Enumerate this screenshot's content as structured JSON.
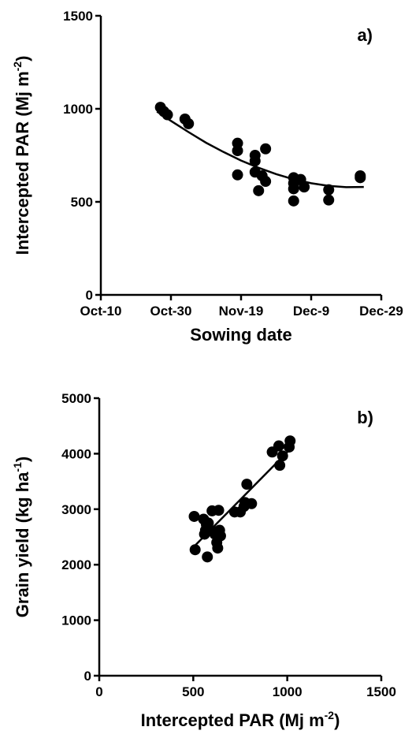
{
  "chart_data": [
    {
      "panel_label": "a)",
      "type": "scatter",
      "xlabel": "Sowing date",
      "ylabel_main": "Intercepted PAR (Mj m",
      "ylabel_sup": "-2",
      "ylabel_close": ")",
      "x_tick_labels": [
        "Oct-10",
        "Oct-30",
        "Nov-19",
        "Dec-9",
        "Dec-29"
      ],
      "y_tick_labels": [
        "0",
        "500",
        "1000",
        "1500"
      ],
      "x_ticks_day": [
        0,
        20,
        40,
        60,
        80
      ],
      "xlim_day": [
        0,
        80
      ],
      "ylim": [
        0,
        1500
      ],
      "x_day_origin": "Oct-10",
      "points": [
        {
          "x": 17,
          "y": 1008
        },
        {
          "x": 18,
          "y": 985
        },
        {
          "x": 19,
          "y": 968
        },
        {
          "x": 24,
          "y": 945
        },
        {
          "x": 25,
          "y": 920
        },
        {
          "x": 39,
          "y": 815
        },
        {
          "x": 39,
          "y": 775
        },
        {
          "x": 39,
          "y": 645
        },
        {
          "x": 44,
          "y": 750
        },
        {
          "x": 44,
          "y": 720
        },
        {
          "x": 44,
          "y": 660
        },
        {
          "x": 45,
          "y": 560
        },
        {
          "x": 46,
          "y": 640
        },
        {
          "x": 47,
          "y": 785
        },
        {
          "x": 47,
          "y": 610
        },
        {
          "x": 55,
          "y": 630
        },
        {
          "x": 55,
          "y": 600
        },
        {
          "x": 55,
          "y": 570
        },
        {
          "x": 55,
          "y": 505
        },
        {
          "x": 57,
          "y": 620
        },
        {
          "x": 58,
          "y": 580
        },
        {
          "x": 65,
          "y": 565
        },
        {
          "x": 65,
          "y": 510
        },
        {
          "x": 74,
          "y": 640
        },
        {
          "x": 74,
          "y": 630
        }
      ],
      "fit": {
        "type": "quadratic",
        "x": [
          16,
          20,
          25,
          30,
          35,
          40,
          45,
          50,
          55,
          60,
          65,
          70,
          75
        ],
        "y": [
          985,
          935,
          875,
          818,
          768,
          722,
          683,
          649,
          621,
          600,
          586,
          579,
          580
        ]
      }
    },
    {
      "panel_label": "b)",
      "type": "scatter",
      "xlabel_main": "Intercepted PAR (Mj m",
      "xlabel_sup": "-2",
      "xlabel_close": ")",
      "ylabel_main": "Grain yield (kg ha",
      "ylabel_sup": "-1",
      "ylabel_close": ")",
      "x_tick_labels": [
        "0",
        "500",
        "1000",
        "1500"
      ],
      "y_tick_labels": [
        "0",
        "1000",
        "2000",
        "3000",
        "4000",
        "5000"
      ],
      "xlim": [
        0,
        1500
      ],
      "ylim": [
        0,
        5000
      ],
      "points": [
        {
          "x": 505,
          "y": 2870
        },
        {
          "x": 510,
          "y": 2270
        },
        {
          "x": 555,
          "y": 2820
        },
        {
          "x": 560,
          "y": 2550
        },
        {
          "x": 565,
          "y": 2620
        },
        {
          "x": 570,
          "y": 2720
        },
        {
          "x": 575,
          "y": 2140
        },
        {
          "x": 580,
          "y": 2750
        },
        {
          "x": 600,
          "y": 2970
        },
        {
          "x": 610,
          "y": 2600
        },
        {
          "x": 615,
          "y": 2550
        },
        {
          "x": 625,
          "y": 2400
        },
        {
          "x": 630,
          "y": 2300
        },
        {
          "x": 635,
          "y": 2980
        },
        {
          "x": 640,
          "y": 2620
        },
        {
          "x": 645,
          "y": 2520
        },
        {
          "x": 720,
          "y": 2950
        },
        {
          "x": 750,
          "y": 2950
        },
        {
          "x": 770,
          "y": 3050
        },
        {
          "x": 775,
          "y": 3120
        },
        {
          "x": 785,
          "y": 3450
        },
        {
          "x": 810,
          "y": 3100
        },
        {
          "x": 920,
          "y": 4030
        },
        {
          "x": 955,
          "y": 4140
        },
        {
          "x": 960,
          "y": 3790
        },
        {
          "x": 975,
          "y": 3960
        },
        {
          "x": 1010,
          "y": 4120
        },
        {
          "x": 1015,
          "y": 4230
        }
      ],
      "fit": {
        "type": "linear",
        "x": [
          505,
          1015
        ],
        "y": [
          2330,
          4080
        ]
      }
    }
  ]
}
